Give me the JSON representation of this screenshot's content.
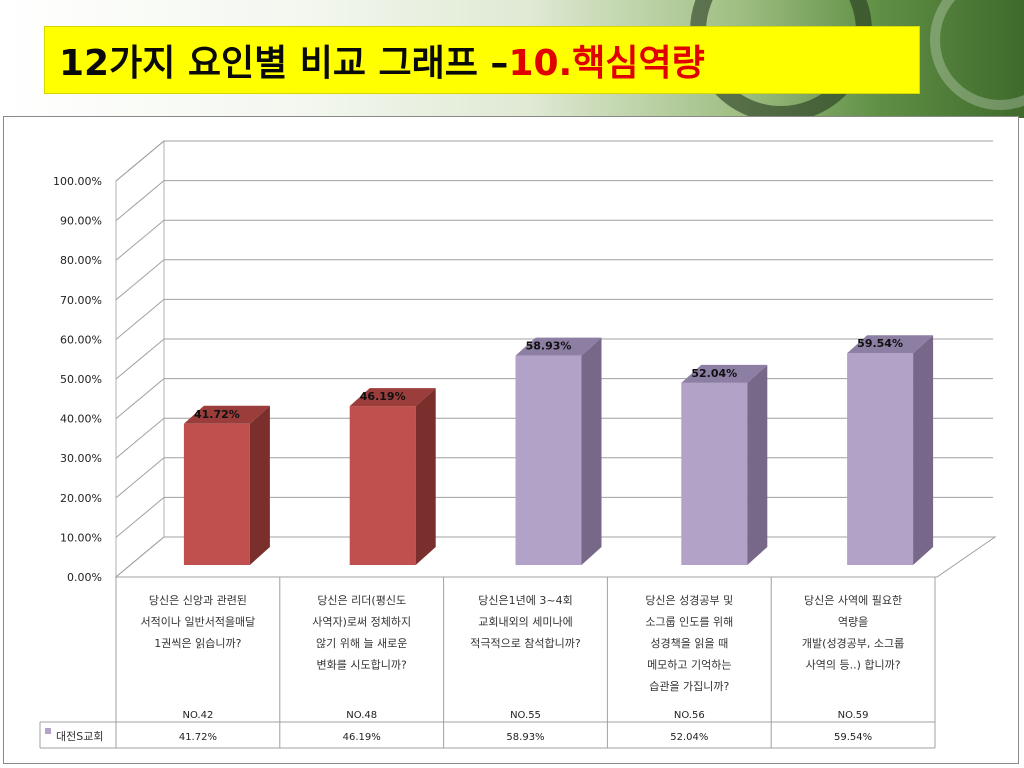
{
  "header": {
    "title_main": "12가지 요인별 비교 그래프 – ",
    "title_highlight": "10.핵심역량"
  },
  "colors": {
    "title_background": "#ffff00",
    "title_highlight": "#e00000",
    "bar_red": "#c0504d",
    "bar_purple": "#b2a2c7"
  },
  "chart_data": {
    "type": "bar",
    "style": "3d-column",
    "ylim": [
      0,
      100
    ],
    "y_ticks": [
      "0.00%",
      "10.00%",
      "20.00%",
      "30.00%",
      "40.00%",
      "50.00%",
      "60.00%",
      "70.00%",
      "80.00%",
      "90.00%",
      "100.00%"
    ],
    "grid": true,
    "categories": [
      "당신은 신앙과 관련된 서적이나 일반서적을매달 1권씩은 읽습니까?",
      "당신은 리더(평신도 사역자)로써 정체하지 않기 위해 늘 새로운 변화를 시도합니까?",
      "당신은1년에 3~4회 교회내외의 세미나에 적극적으로 참석합니까?",
      "당신은 성경공부 및 소그룹 인도를 위해 성경책을 읽을 때 메모하고 기억하는 습관을 가집니까?",
      "당신은 사역에 필요한 역량을 개발(성경공부, 소그룹 사역의 등..) 합니까?"
    ],
    "category_lines": [
      [
        "당신은 신앙과 관련된",
        "서적이나 일반서적을매달",
        "1권씩은 읽습니까?"
      ],
      [
        "당신은 리더(평신도",
        "사역자)로써 정체하지",
        "않기 위해 늘 새로운",
        "변화를 시도합니까?"
      ],
      [
        "당신은1년에 3~4회",
        "교회내외의 세미나에",
        "적극적으로 참석합니까?"
      ],
      [
        "당신은 성경공부 및",
        "소그룹 인도를 위해",
        "성경책을 읽을 때",
        "메모하고 기억하는",
        "습관을 가집니까?"
      ],
      [
        "당신은 사역에 필요한",
        "역량을",
        "개발(성경공부, 소그룹",
        "사역의 등..) 합니까?"
      ]
    ],
    "codes": [
      "NO.42",
      "NO.48",
      "NO.55",
      "NO.56",
      "NO.59"
    ],
    "series": [
      {
        "name": "대전S교회",
        "values": [
          41.72,
          46.19,
          58.93,
          52.04,
          59.54
        ],
        "labels": [
          "41.72%",
          "46.19%",
          "58.93%",
          "52.04%",
          "59.54%"
        ],
        "bar_colors": [
          "red",
          "red",
          "purple",
          "purple",
          "purple"
        ]
      }
    ]
  }
}
